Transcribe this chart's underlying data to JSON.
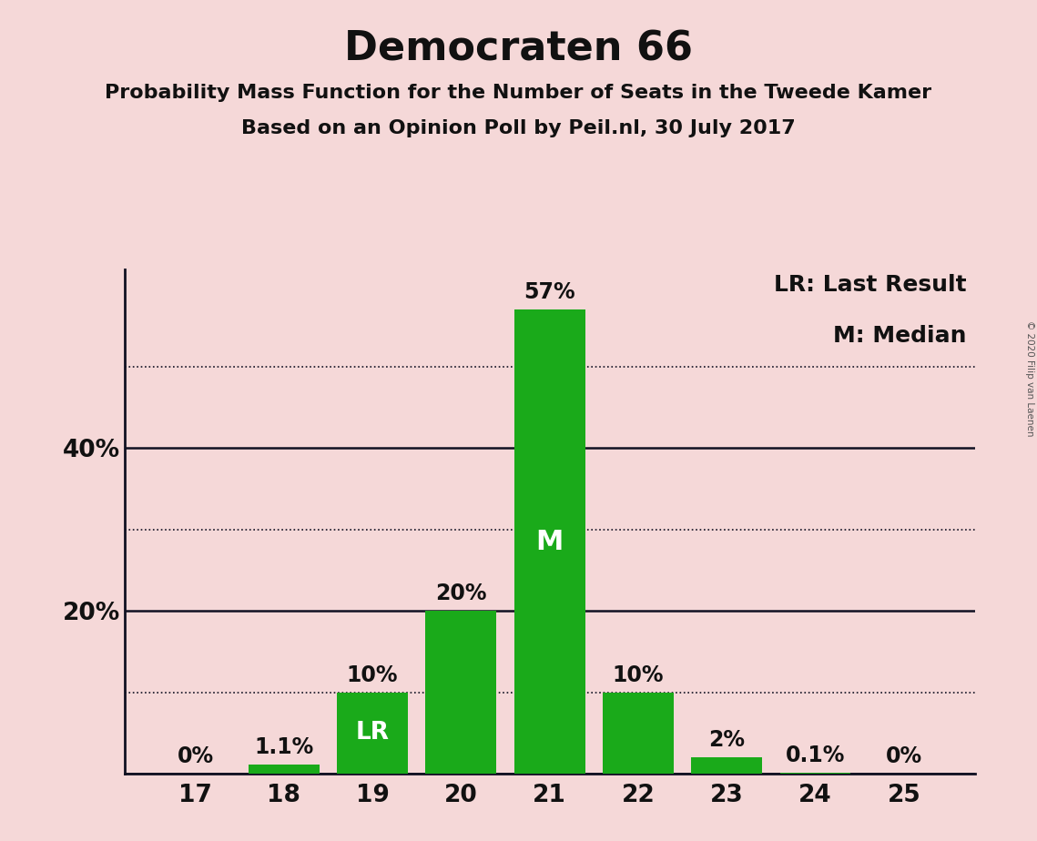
{
  "title": "Democraten 66",
  "subtitle1": "Probability Mass Function for the Number of Seats in the Tweede Kamer",
  "subtitle2": "Based on an Opinion Poll by Peil.nl, 30 July 2017",
  "seats": [
    17,
    18,
    19,
    20,
    21,
    22,
    23,
    24,
    25
  ],
  "probabilities": [
    0.0,
    1.1,
    10.0,
    20.0,
    57.0,
    10.0,
    2.0,
    0.1,
    0.0
  ],
  "bar_labels": [
    "0%",
    "1.1%",
    "10%",
    "20%",
    "57%",
    "10%",
    "2%",
    "0.1%",
    "0%"
  ],
  "bar_color": "#1aaa1a",
  "background_color": "#f5d8d8",
  "text_color": "#111111",
  "label_color_inside": "#ffffff",
  "label_color_outside": "#111111",
  "lr_seat": 19,
  "median_seat": 21,
  "solid_yticks": [
    0,
    20,
    40
  ],
  "dotted_yticks": [
    10,
    30,
    50
  ],
  "labeled_yticks": [
    20,
    40
  ],
  "ytick_labels": {
    "20": "20%",
    "40": "40%"
  },
  "ymax": 62,
  "legend_lr": "LR: Last Result",
  "legend_m": "M: Median",
  "copyright": "© 2020 Filip van Laenen",
  "title_fontsize": 32,
  "subtitle_fontsize": 16,
  "bar_label_fontsize": 17,
  "axis_tick_fontsize": 19,
  "legend_fontsize": 18
}
